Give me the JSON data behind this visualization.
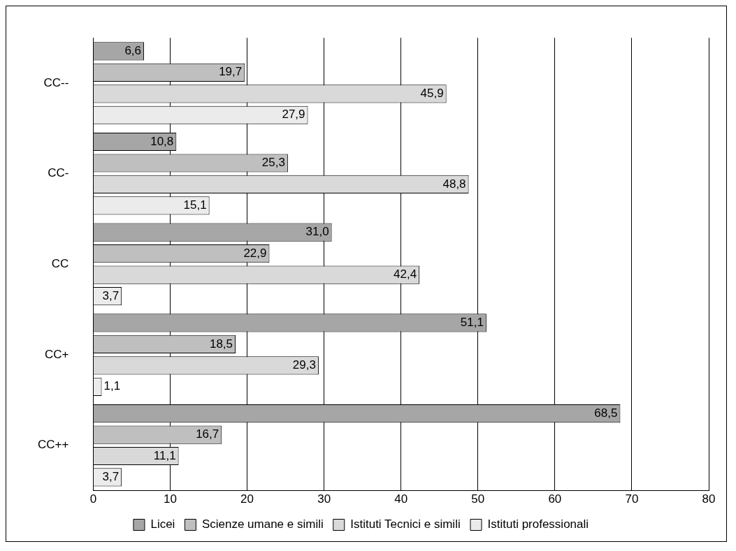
{
  "chart_data": {
    "type": "bar",
    "orientation": "horizontal",
    "categories": [
      "CC--",
      "CC-",
      "CC",
      "CC+",
      "CC++"
    ],
    "series": [
      {
        "name": "Licei",
        "color": "#a6a6a6",
        "values": [
          6.6,
          10.8,
          31.0,
          51.1,
          68.5
        ],
        "value_labels": [
          "6,6",
          "10,8",
          "31,0",
          "51,1",
          "68,5"
        ]
      },
      {
        "name": "Scienze umane e simili",
        "color": "#bfbfbf",
        "values": [
          19.7,
          25.3,
          22.9,
          18.5,
          16.7
        ],
        "value_labels": [
          "19,7",
          "25,3",
          "22,9",
          "18,5",
          "16,7"
        ]
      },
      {
        "name": "Istituti Tecnici e simili",
        "color": "#d9d9d9",
        "values": [
          45.9,
          48.8,
          42.4,
          29.3,
          11.1
        ],
        "value_labels": [
          "45,9",
          "48,8",
          "42,4",
          "29,3",
          "11,1"
        ]
      },
      {
        "name": "Istituti professionali",
        "color": "#ebebeb",
        "values": [
          27.9,
          15.1,
          3.7,
          1.1,
          3.7
        ],
        "value_labels": [
          "27,9",
          "15,1",
          "3,7",
          "1,1",
          "3,7"
        ]
      }
    ],
    "xlim": [
      0,
      80
    ],
    "xticks": [
      0,
      10,
      20,
      30,
      40,
      50,
      60,
      70,
      80
    ],
    "grid": "x",
    "legend": "bottom"
  }
}
